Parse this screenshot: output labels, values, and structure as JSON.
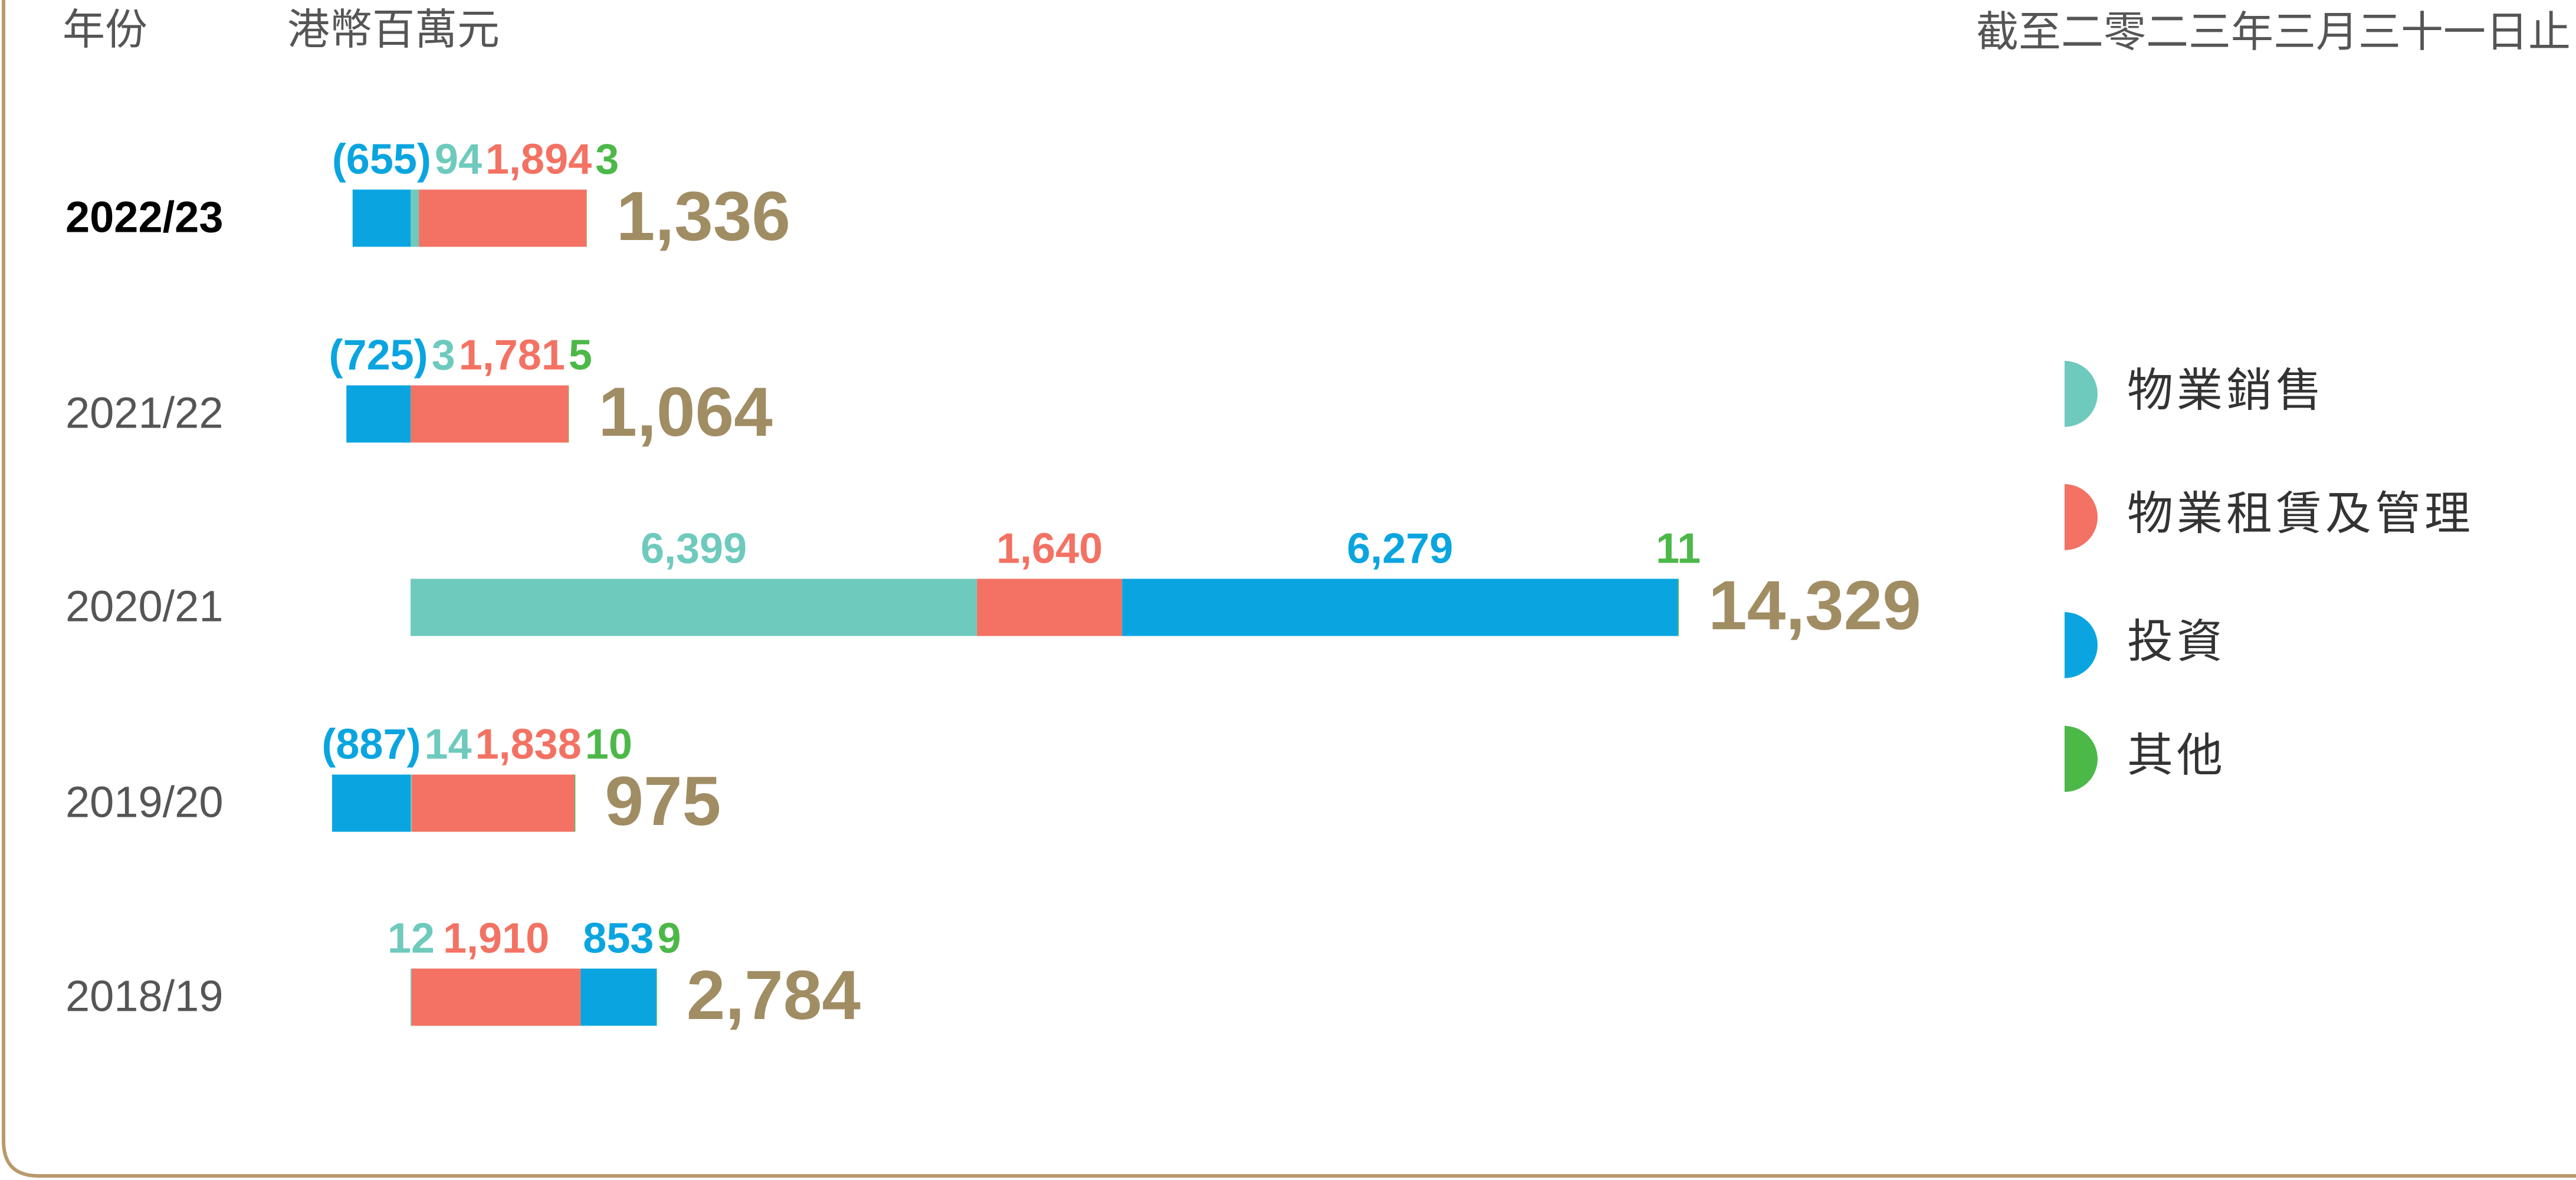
{
  "chart_data": {
    "type": "bar",
    "header_left": "年份",
    "unit": "港幣百萬元",
    "period": "截至二零二三年三月三十一日止",
    "categories": [
      "2022/23",
      "2021/22",
      "2020/21",
      "2019/20",
      "2018/19"
    ],
    "series": [
      {
        "name": "物業銷售",
        "color": "#6ecabd",
        "values": [
          94,
          3,
          6399,
          14,
          12
        ],
        "value_labels": [
          "94",
          "3",
          "6,399",
          "14",
          "12"
        ]
      },
      {
        "name": "物業租賃及管理",
        "color": "#f37263",
        "values": [
          1894,
          1781,
          1640,
          1838,
          1910
        ],
        "value_labels": [
          "1,894",
          "1,781",
          "1,640",
          "1,838",
          "1,910"
        ]
      },
      {
        "name": "投資",
        "color": "#0aa5e0",
        "values": [
          -655,
          -725,
          6279,
          -887,
          853
        ],
        "value_labels": [
          "(655)",
          "(725)",
          "6,279",
          "(887)",
          "853"
        ]
      },
      {
        "name": "其他",
        "color": "#4cb848",
        "values": [
          3,
          5,
          11,
          10,
          9
        ],
        "value_labels": [
          "3",
          "5",
          "11",
          "10",
          "9"
        ]
      }
    ],
    "totals": {
      "color": "#a08d63",
      "values": [
        1336,
        1064,
        14329,
        975,
        2784
      ],
      "value_labels": [
        "1,336",
        "1,064",
        "14,329",
        "975",
        "2,784"
      ]
    }
  }
}
